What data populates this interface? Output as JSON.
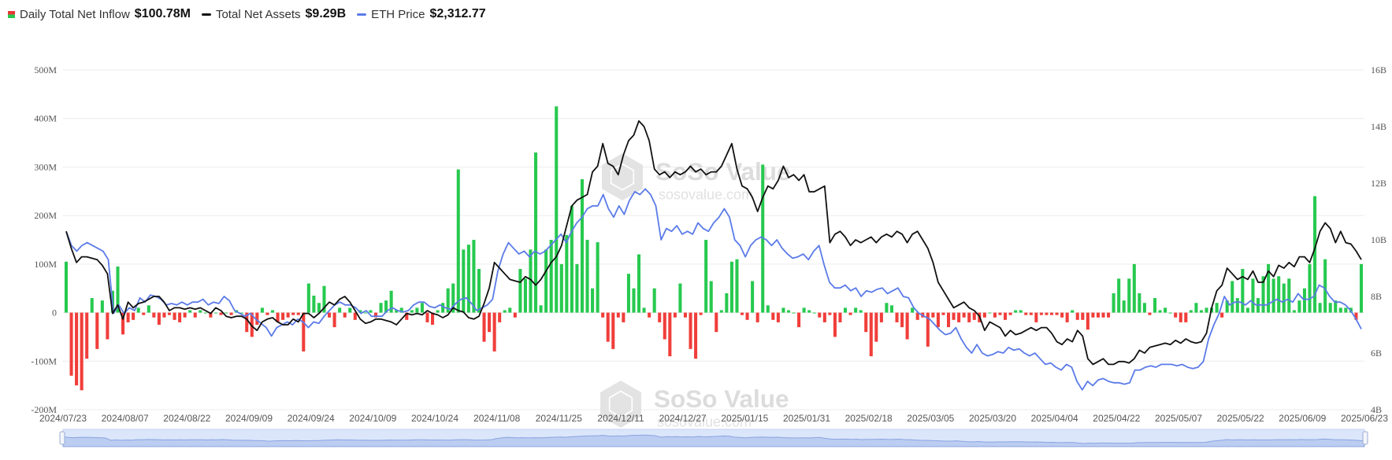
{
  "legend": {
    "inflow": {
      "label": "Daily Total Net Inflow",
      "value": "$100.78M"
    },
    "assets": {
      "label": "Total Net Assets",
      "value": "$9.29B"
    },
    "eth": {
      "label": "ETH Price",
      "value": "$2,312.77"
    }
  },
  "watermark": {
    "brand": "SoSo Value",
    "site": "sosovalue.com"
  },
  "colors": {
    "positive": "#27c94f",
    "negative": "#f03e3a",
    "assets_line": "#111111",
    "eth_line": "#5b7be8",
    "grid": "#ececec"
  },
  "chart_data": {
    "type": "bar",
    "x_labels": [
      "2024/07/23",
      "2024/08/07",
      "2024/08/22",
      "2024/09/09",
      "2024/09/24",
      "2024/10/09",
      "2024/10/24",
      "2024/11/08",
      "2024/11/25",
      "2024/12/11",
      "2024/12/27",
      "2025/01/15",
      "2025/01/31",
      "2025/02/18",
      "2025/03/05",
      "2025/03/20",
      "2025/04/04",
      "2025/04/22",
      "2025/05/07",
      "2025/05/22",
      "2025/06/09",
      "2025/06/23"
    ],
    "y_left": {
      "ticks": [
        "500M",
        "400M",
        "300M",
        "200M",
        "100M",
        "0",
        "-100M",
        "-200M"
      ],
      "range": [
        -200,
        500
      ],
      "unit": "M"
    },
    "y_right": {
      "ticks": [
        "16B",
        "14B",
        "12B",
        "10B",
        "8B",
        "6B",
        "4B"
      ],
      "range": [
        4,
        16
      ],
      "unit": "B"
    },
    "inflow_values": [
      105,
      -130,
      -150,
      -160,
      -95,
      30,
      -75,
      25,
      -55,
      45,
      95,
      -45,
      -20,
      -15,
      10,
      -5,
      15,
      -10,
      -25,
      -10,
      -5,
      -15,
      -20,
      -10,
      5,
      -10,
      5,
      0,
      -10,
      0,
      -5,
      0,
      -5,
      5,
      0,
      -40,
      -50,
      -25,
      10,
      -5,
      5,
      -20,
      -15,
      -10,
      -5,
      -5,
      -80,
      60,
      35,
      20,
      55,
      -10,
      -30,
      10,
      -10,
      10,
      -15,
      5,
      0,
      5,
      -10,
      20,
      25,
      45,
      5,
      10,
      -15,
      5,
      10,
      20,
      -20,
      -25,
      5,
      20,
      50,
      60,
      295,
      130,
      140,
      150,
      90,
      -60,
      -40,
      -80,
      -20,
      5,
      10,
      -10,
      90,
      70,
      130,
      330,
      15,
      130,
      150,
      425,
      100,
      160,
      220,
      100,
      275,
      150,
      50,
      145,
      -10,
      -60,
      -75,
      -10,
      -20,
      80,
      50,
      120,
      10,
      -10,
      50,
      -20,
      -55,
      -90,
      -10,
      60,
      -10,
      -75,
      -95,
      -5,
      150,
      65,
      -40,
      5,
      40,
      105,
      110,
      -5,
      -15,
      65,
      -20,
      305,
      15,
      -15,
      -20,
      10,
      5,
      0,
      -30,
      10,
      5,
      0,
      -10,
      -20,
      -5,
      -50,
      -20,
      10,
      -5,
      10,
      5,
      -40,
      -90,
      -60,
      -20,
      20,
      15,
      -20,
      -30,
      -55,
      10,
      -15,
      -10,
      -70,
      -10,
      -30,
      -5,
      -30,
      -15,
      -20,
      -10,
      -20,
      -15,
      -20,
      -10,
      0,
      -10,
      -5,
      -15,
      -5,
      5,
      5,
      -5,
      -5,
      -20,
      -5,
      -5,
      -5,
      -5,
      -10,
      -20,
      5,
      -15,
      -15,
      -35,
      -10,
      -10,
      -10,
      -10,
      40,
      70,
      25,
      70,
      100,
      40,
      20,
      -5,
      30,
      5,
      10,
      0,
      -10,
      -20,
      -20,
      5,
      20,
      5,
      10,
      10,
      20,
      -10,
      25,
      65,
      30,
      90,
      10,
      70,
      30,
      75,
      100,
      70,
      75,
      60,
      70,
      5,
      25,
      50,
      100,
      240,
      20,
      110,
      20,
      25,
      10,
      10,
      10,
      -15,
      100
    ],
    "assets_values": [
      10.3,
      9.7,
      9.2,
      9.4,
      9.4,
      9.35,
      9.3,
      9.1,
      8.8,
      7.4,
      7.7,
      7.2,
      7.8,
      7.6,
      7.75,
      7.8,
      7.9,
      8.0,
      8.0,
      7.8,
      7.5,
      7.6,
      7.6,
      7.55,
      7.6,
      7.55,
      7.6,
      7.5,
      7.4,
      7.6,
      7.5,
      7.3,
      7.25,
      7.3,
      7.3,
      7.2,
      6.95,
      6.8,
      7.1,
      7.2,
      7.25,
      7.1,
      7.0,
      7.0,
      7.2,
      7.1,
      7.4,
      7.4,
      7.25,
      7.4,
      7.6,
      7.8,
      7.7,
      7.9,
      8.0,
      7.8,
      7.5,
      7.2,
      7.05,
      7.1,
      7.2,
      7.2,
      7.15,
      7.1,
      7.0,
      7.2,
      7.4,
      7.35,
      7.4,
      7.35,
      7.5,
      7.4,
      7.35,
      7.25,
      7.35,
      7.6,
      7.5,
      7.45,
      7.25,
      7.2,
      7.3,
      7.75,
      8.3,
      9.2,
      9.0,
      8.8,
      8.6,
      8.55,
      8.5,
      8.7,
      8.6,
      8.4,
      8.6,
      8.9,
      9.2,
      9.4,
      9.8,
      10.5,
      11.2,
      11.4,
      11.5,
      11.6,
      12.4,
      12.6,
      13.4,
      12.7,
      12.6,
      12.3,
      13.0,
      13.5,
      13.7,
      14.2,
      14.0,
      13.5,
      12.5,
      12.3,
      12.4,
      12.2,
      12.4,
      12.3,
      12.4,
      12.6,
      12.4,
      12.5,
      12.3,
      12.4,
      12.4,
      12.6,
      13.0,
      13.4,
      12.5,
      11.9,
      11.8,
      11.5,
      11.0,
      11.5,
      11.9,
      11.8,
      12.1,
      12.6,
      12.2,
      12.3,
      12.1,
      12.3,
      11.7,
      11.7,
      11.8,
      11.9,
      9.9,
      10.2,
      10.3,
      10.1,
      9.8,
      10.0,
      9.9,
      10.0,
      10.1,
      9.9,
      10.1,
      10.2,
      10.1,
      10.3,
      10.2,
      9.9,
      10.2,
      10.3,
      10.0,
      9.7,
      9.2,
      8.5,
      8.2,
      7.9,
      7.6,
      7.7,
      7.8,
      7.6,
      7.5,
      7.3,
      6.8,
      7.1,
      7.0,
      6.9,
      6.6,
      6.8,
      6.65,
      6.7,
      6.8,
      6.9,
      6.8,
      6.9,
      6.9,
      6.7,
      6.4,
      6.3,
      6.5,
      6.4,
      6.8,
      6.6,
      5.8,
      5.6,
      5.7,
      5.8,
      5.6,
      5.6,
      5.7,
      5.7,
      5.65,
      5.8,
      6.1,
      6.0,
      6.2,
      6.25,
      6.3,
      6.35,
      6.3,
      6.45,
      6.35,
      6.5,
      6.4,
      6.35,
      6.4,
      6.7,
      7.6,
      8.2,
      8.4,
      9.0,
      8.8,
      8.6,
      8.7,
      8.6,
      8.9,
      8.5,
      8.5,
      8.9,
      8.7,
      9.1,
      9.0,
      9.2,
      9.05,
      9.4,
      9.4,
      9.2,
      9.7,
      10.3,
      10.6,
      10.4,
      9.9,
      10.3,
      9.9,
      9.85,
      9.6,
      9.3
    ],
    "eth_values": [
      10.3,
      9.8,
      9.6,
      9.8,
      9.9,
      9.8,
      9.7,
      9.6,
      9.3,
      7.4,
      7.7,
      7.4,
      7.6,
      7.5,
      7.95,
      7.8,
      8.05,
      8.0,
      7.9,
      7.7,
      7.75,
      7.7,
      7.8,
      7.7,
      7.8,
      7.8,
      7.9,
      7.7,
      7.8,
      7.75,
      8.0,
      7.85,
      7.5,
      7.4,
      7.3,
      7.4,
      7.2,
      7.05,
      6.9,
      6.6,
      6.9,
      7.0,
      7.1,
      7.0,
      7.2,
      7.1,
      6.9,
      7.1,
      7.05,
      7.3,
      7.5,
      7.7,
      7.8,
      7.7,
      7.7,
      7.6,
      7.4,
      7.5,
      7.3,
      7.3,
      7.3,
      7.5,
      7.6,
      7.5,
      7.45,
      7.5,
      7.7,
      7.8,
      7.8,
      7.65,
      7.6,
      7.7,
      7.6,
      7.55,
      7.75,
      7.9,
      7.95,
      7.75,
      7.5,
      7.6,
      7.7,
      7.9,
      8.9,
      9.5,
      9.9,
      9.7,
      9.5,
      9.6,
      9.4,
      9.6,
      9.5,
      9.6,
      9.8,
      10.0,
      10.2,
      9.9,
      10.3,
      10.6,
      10.8,
      11.1,
      11.2,
      11.2,
      11.6,
      11.1,
      10.8,
      11.2,
      10.9,
      11.4,
      11.7,
      11.6,
      11.8,
      11.6,
      11.2,
      10.0,
      10.4,
      10.3,
      10.5,
      10.2,
      10.3,
      10.2,
      10.6,
      10.4,
      10.3,
      10.6,
      10.8,
      11.1,
      10.8,
      10.0,
      9.8,
      9.4,
      9.8,
      10.0,
      10.1,
      10.0,
      9.8,
      10.0,
      9.7,
      9.5,
      9.35,
      9.4,
      9.5,
      9.3,
      9.6,
      9.8,
      9.1,
      8.5,
      8.3,
      8.3,
      8.4,
      8.2,
      8.3,
      8.0,
      8.2,
      8.15,
      8.25,
      8.3,
      8.1,
      8.2,
      8.3,
      8.0,
      7.95,
      7.6,
      7.4,
      7.3,
      7.2,
      7.0,
      6.8,
      6.65,
      6.7,
      6.9,
      6.5,
      6.2,
      6.0,
      6.3,
      6.0,
      5.9,
      5.95,
      6.05,
      6.0,
      6.2,
      6.1,
      6.15,
      6.0,
      5.9,
      6.0,
      5.8,
      5.6,
      5.65,
      5.5,
      5.4,
      5.6,
      5.5,
      5.0,
      4.7,
      5.0,
      4.85,
      5.05,
      5.1,
      5.0,
      4.95,
      4.95,
      4.9,
      4.95,
      5.4,
      5.4,
      5.5,
      5.55,
      5.5,
      5.6,
      5.6,
      5.6,
      5.55,
      5.6,
      5.5,
      5.45,
      5.5,
      5.7,
      6.5,
      7.0,
      7.4,
      8.0,
      7.7,
      7.8,
      7.8,
      7.7,
      7.85,
      7.7,
      7.7,
      7.7,
      7.8,
      7.9,
      7.8,
      7.9,
      7.8,
      8.1,
      7.9,
      7.9,
      8.0,
      8.4,
      8.3,
      8.0,
      7.8,
      7.8,
      7.7,
      7.5,
      7.2,
      6.85
    ]
  }
}
